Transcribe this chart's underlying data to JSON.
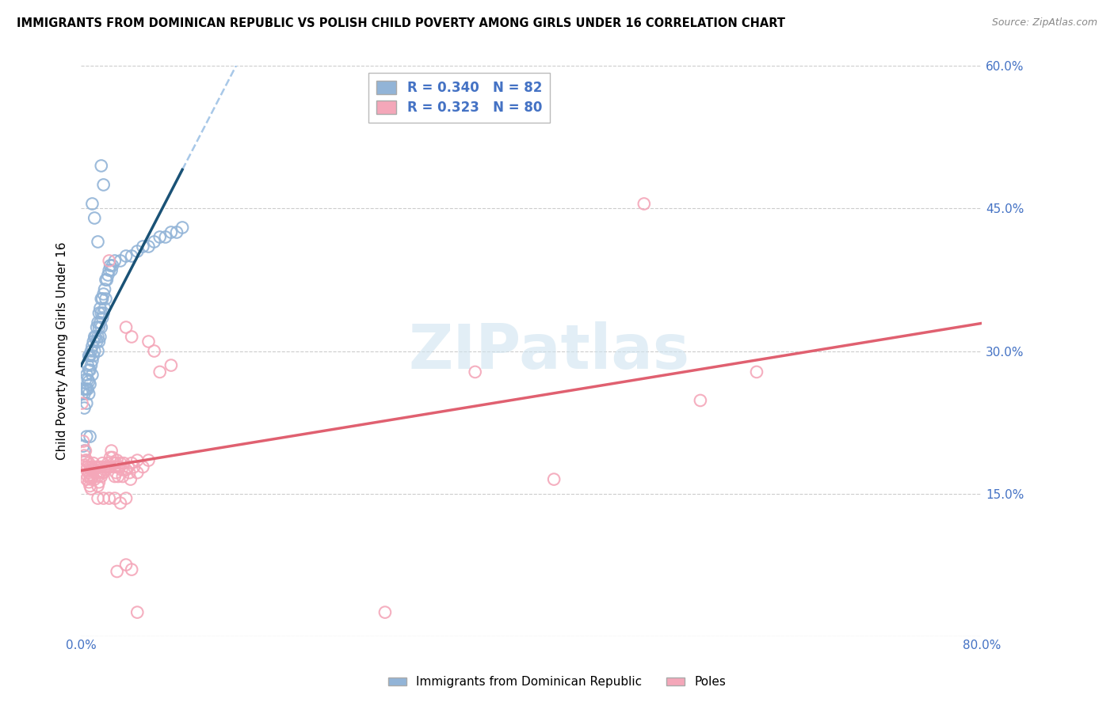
{
  "title": "IMMIGRANTS FROM DOMINICAN REPUBLIC VS POLISH CHILD POVERTY AMONG GIRLS UNDER 16 CORRELATION CHART",
  "source": "Source: ZipAtlas.com",
  "ylabel": "Child Poverty Among Girls Under 16",
  "xlim": [
    0.0,
    0.8
  ],
  "ylim": [
    0.0,
    0.6
  ],
  "yticks": [
    0.0,
    0.15,
    0.3,
    0.45,
    0.6
  ],
  "yticklabels": [
    "",
    "15.0%",
    "30.0%",
    "45.0%",
    "60.0%"
  ],
  "legend_color1": "#92b4d7",
  "legend_color2": "#f4a7b9",
  "trendline1_color": "#1a5276",
  "trendline2_color": "#e06070",
  "trendline1_dashed_color": "#a8c8e8",
  "watermark": "ZIPatlas",
  "blue_scatter": [
    [
      0.001,
      0.255
    ],
    [
      0.002,
      0.26
    ],
    [
      0.002,
      0.2
    ],
    [
      0.003,
      0.255
    ],
    [
      0.003,
      0.24
    ],
    [
      0.003,
      0.195
    ],
    [
      0.004,
      0.27
    ],
    [
      0.004,
      0.26
    ],
    [
      0.005,
      0.275
    ],
    [
      0.005,
      0.26
    ],
    [
      0.005,
      0.245
    ],
    [
      0.006,
      0.285
    ],
    [
      0.006,
      0.27
    ],
    [
      0.006,
      0.26
    ],
    [
      0.007,
      0.295
    ],
    [
      0.007,
      0.28
    ],
    [
      0.007,
      0.268
    ],
    [
      0.007,
      0.255
    ],
    [
      0.008,
      0.295
    ],
    [
      0.008,
      0.28
    ],
    [
      0.008,
      0.265
    ],
    [
      0.009,
      0.3
    ],
    [
      0.009,
      0.285
    ],
    [
      0.01,
      0.305
    ],
    [
      0.01,
      0.29
    ],
    [
      0.01,
      0.275
    ],
    [
      0.011,
      0.31
    ],
    [
      0.011,
      0.295
    ],
    [
      0.012,
      0.315
    ],
    [
      0.012,
      0.3
    ],
    [
      0.013,
      0.315
    ],
    [
      0.014,
      0.325
    ],
    [
      0.014,
      0.31
    ],
    [
      0.015,
      0.33
    ],
    [
      0.015,
      0.315
    ],
    [
      0.015,
      0.3
    ],
    [
      0.016,
      0.34
    ],
    [
      0.016,
      0.325
    ],
    [
      0.016,
      0.31
    ],
    [
      0.017,
      0.345
    ],
    [
      0.017,
      0.33
    ],
    [
      0.017,
      0.315
    ],
    [
      0.018,
      0.355
    ],
    [
      0.018,
      0.34
    ],
    [
      0.018,
      0.325
    ],
    [
      0.019,
      0.355
    ],
    [
      0.019,
      0.335
    ],
    [
      0.02,
      0.36
    ],
    [
      0.02,
      0.34
    ],
    [
      0.021,
      0.365
    ],
    [
      0.021,
      0.345
    ],
    [
      0.022,
      0.375
    ],
    [
      0.022,
      0.355
    ],
    [
      0.023,
      0.375
    ],
    [
      0.024,
      0.38
    ],
    [
      0.025,
      0.385
    ],
    [
      0.026,
      0.39
    ],
    [
      0.027,
      0.385
    ],
    [
      0.028,
      0.39
    ],
    [
      0.03,
      0.395
    ],
    [
      0.035,
      0.395
    ],
    [
      0.04,
      0.4
    ],
    [
      0.045,
      0.4
    ],
    [
      0.05,
      0.405
    ],
    [
      0.055,
      0.41
    ],
    [
      0.06,
      0.41
    ],
    [
      0.065,
      0.415
    ],
    [
      0.07,
      0.42
    ],
    [
      0.075,
      0.42
    ],
    [
      0.08,
      0.425
    ],
    [
      0.085,
      0.425
    ],
    [
      0.09,
      0.43
    ],
    [
      0.018,
      0.495
    ],
    [
      0.02,
      0.475
    ],
    [
      0.01,
      0.455
    ],
    [
      0.012,
      0.44
    ],
    [
      0.015,
      0.415
    ],
    [
      0.008,
      0.21
    ],
    [
      0.005,
      0.21
    ]
  ],
  "pink_scatter": [
    [
      0.001,
      0.245
    ],
    [
      0.002,
      0.205
    ],
    [
      0.003,
      0.19
    ],
    [
      0.003,
      0.18
    ],
    [
      0.004,
      0.195
    ],
    [
      0.004,
      0.185
    ],
    [
      0.005,
      0.185
    ],
    [
      0.005,
      0.175
    ],
    [
      0.005,
      0.165
    ],
    [
      0.006,
      0.178
    ],
    [
      0.006,
      0.168
    ],
    [
      0.007,
      0.182
    ],
    [
      0.007,
      0.172
    ],
    [
      0.007,
      0.162
    ],
    [
      0.008,
      0.178
    ],
    [
      0.008,
      0.168
    ],
    [
      0.008,
      0.158
    ],
    [
      0.009,
      0.175
    ],
    [
      0.009,
      0.165
    ],
    [
      0.009,
      0.155
    ],
    [
      0.01,
      0.178
    ],
    [
      0.01,
      0.168
    ],
    [
      0.011,
      0.182
    ],
    [
      0.012,
      0.175
    ],
    [
      0.012,
      0.165
    ],
    [
      0.013,
      0.178
    ],
    [
      0.014,
      0.172
    ],
    [
      0.015,
      0.178
    ],
    [
      0.015,
      0.168
    ],
    [
      0.015,
      0.158
    ],
    [
      0.016,
      0.172
    ],
    [
      0.016,
      0.162
    ],
    [
      0.017,
      0.172
    ],
    [
      0.018,
      0.178
    ],
    [
      0.018,
      0.168
    ],
    [
      0.019,
      0.182
    ],
    [
      0.019,
      0.172
    ],
    [
      0.02,
      0.172
    ],
    [
      0.021,
      0.175
    ],
    [
      0.022,
      0.178
    ],
    [
      0.023,
      0.178
    ],
    [
      0.024,
      0.182
    ],
    [
      0.025,
      0.178
    ],
    [
      0.026,
      0.188
    ],
    [
      0.026,
      0.178
    ],
    [
      0.027,
      0.195
    ],
    [
      0.028,
      0.188
    ],
    [
      0.029,
      0.182
    ],
    [
      0.03,
      0.178
    ],
    [
      0.03,
      0.168
    ],
    [
      0.031,
      0.182
    ],
    [
      0.031,
      0.172
    ],
    [
      0.032,
      0.185
    ],
    [
      0.033,
      0.178
    ],
    [
      0.033,
      0.168
    ],
    [
      0.034,
      0.178
    ],
    [
      0.035,
      0.182
    ],
    [
      0.036,
      0.175
    ],
    [
      0.037,
      0.168
    ],
    [
      0.038,
      0.182
    ],
    [
      0.04,
      0.175
    ],
    [
      0.042,
      0.178
    ],
    [
      0.043,
      0.172
    ],
    [
      0.044,
      0.165
    ],
    [
      0.045,
      0.182
    ],
    [
      0.047,
      0.178
    ],
    [
      0.05,
      0.185
    ],
    [
      0.05,
      0.172
    ],
    [
      0.055,
      0.178
    ],
    [
      0.06,
      0.185
    ],
    [
      0.025,
      0.395
    ],
    [
      0.04,
      0.325
    ],
    [
      0.045,
      0.315
    ],
    [
      0.06,
      0.31
    ],
    [
      0.065,
      0.3
    ],
    [
      0.07,
      0.278
    ],
    [
      0.08,
      0.285
    ],
    [
      0.5,
      0.455
    ],
    [
      0.6,
      0.278
    ],
    [
      0.55,
      0.248
    ],
    [
      0.35,
      0.278
    ],
    [
      0.42,
      0.165
    ],
    [
      0.27,
      0.025
    ],
    [
      0.05,
      0.025
    ],
    [
      0.015,
      0.145
    ],
    [
      0.02,
      0.145
    ],
    [
      0.025,
      0.145
    ],
    [
      0.03,
      0.145
    ],
    [
      0.035,
      0.14
    ],
    [
      0.04,
      0.145
    ],
    [
      0.032,
      0.068
    ],
    [
      0.04,
      0.075
    ],
    [
      0.045,
      0.07
    ]
  ]
}
